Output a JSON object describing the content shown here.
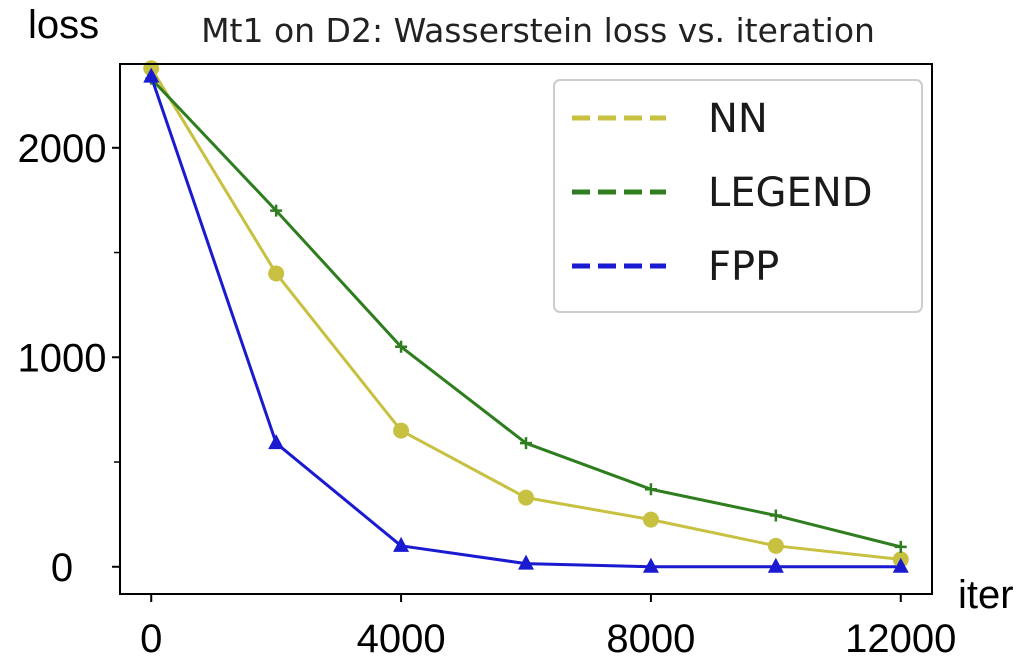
{
  "chart_data": {
    "type": "line",
    "title": "Mt1 on D2: Wasserstein loss vs. iteration",
    "xlabel": "iter",
    "ylabel": "loss",
    "x": [
      0,
      2000,
      4000,
      6000,
      8000,
      10000,
      12000
    ],
    "xlim": [
      -500,
      12500
    ],
    "ylim": [
      -130,
      2400
    ],
    "xticks": [
      0,
      4000,
      8000,
      12000
    ],
    "xtick_labels": [
      "0",
      "4000",
      "8000",
      "12000"
    ],
    "yticks": [
      0,
      1000,
      2000
    ],
    "ytick_labels": [
      "0",
      "1000",
      "2000"
    ],
    "yticks_minor": [
      500,
      1500
    ],
    "grid": false,
    "legend_position": "top-right",
    "series": [
      {
        "name": "NN",
        "color": "#c8c040",
        "marker": "circle",
        "values": [
          2380,
          1400,
          650,
          330,
          225,
          100,
          35
        ]
      },
      {
        "name": "LEGEND",
        "color": "#2e7d1e",
        "marker": "plus",
        "values": [
          2330,
          1700,
          1050,
          590,
          370,
          245,
          95
        ]
      },
      {
        "name": "FPP",
        "color": "#1a1ad0",
        "marker": "triangle",
        "values": [
          2340,
          590,
          100,
          15,
          0,
          0,
          0
        ]
      }
    ]
  }
}
